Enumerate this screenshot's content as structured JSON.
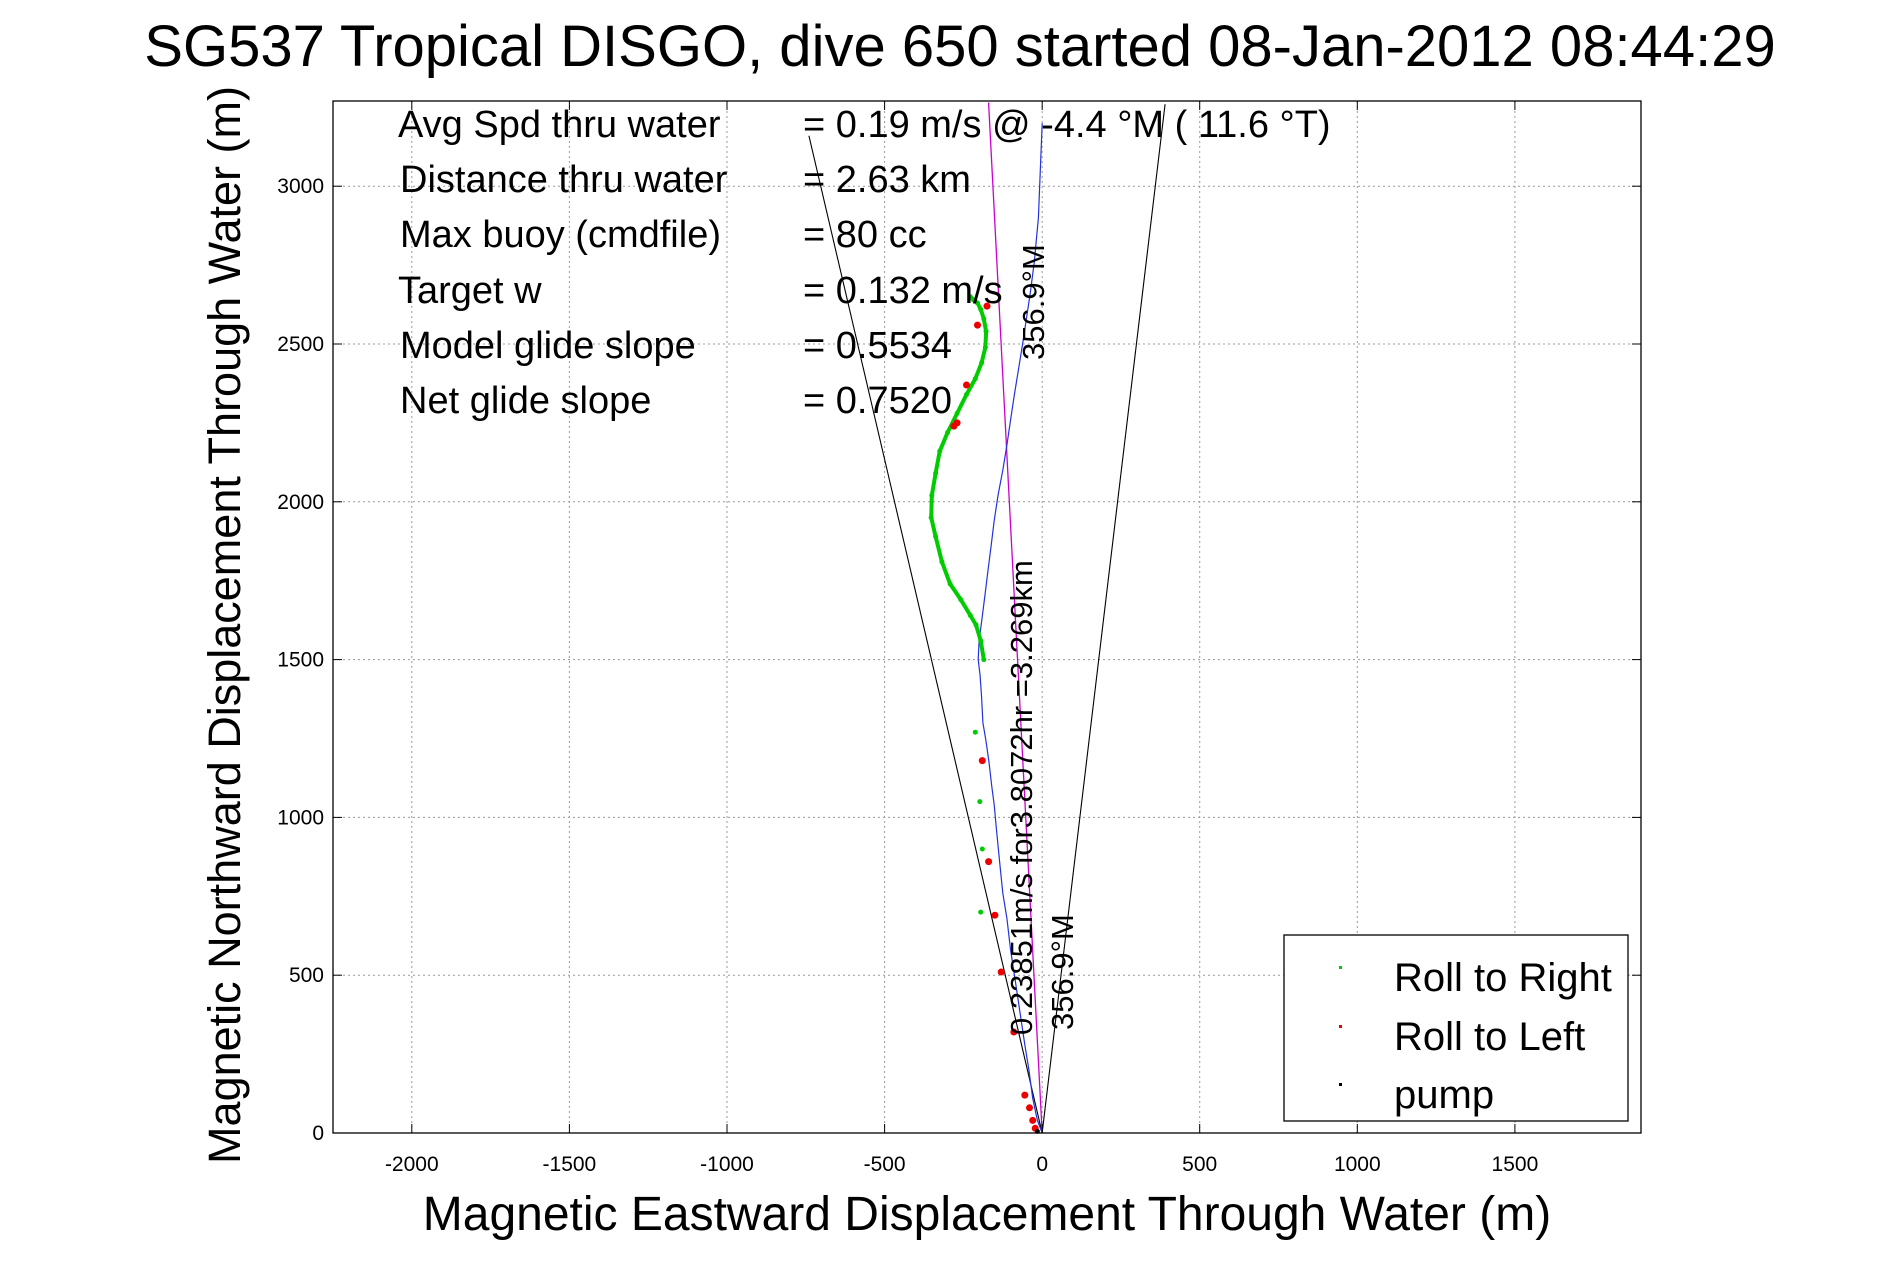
{
  "chart_data": {
    "type": "line",
    "title": "SG537 Tropical DISGO, dive 650 started 08-Jan-2012 08:44:29",
    "xlabel": "Magnetic Eastward Displacement Through Water (m)",
    "ylabel": "Magnetic Northward Displacement Through Water (m)",
    "xlim": [
      -2250,
      1900
    ],
    "ylim": [
      0,
      3270
    ],
    "xticks": [
      -2000,
      -1500,
      -1000,
      -500,
      0,
      500,
      1000,
      1500
    ],
    "yticks": [
      0,
      500,
      1000,
      1500,
      2000,
      2500,
      3000
    ],
    "grid": true,
    "legend_position": "lower-right",
    "info_lines": [
      {
        "label": "Avg Spd thru water",
        "value": "=  0.19 m/s @  -4.4 °M ( 11.6 °T)"
      },
      {
        "label": "Distance thru water",
        "value": "=  2.63 km"
      },
      {
        "label": "Max buoy (cmdfile)",
        "value": "= 80 cc"
      },
      {
        "label": "Target w",
        "value": "= 0.132 m/s"
      },
      {
        "label": "Model glide slope",
        "value": "= 0.5534"
      },
      {
        "label": "Net glide slope",
        "value": "= 0.7520"
      }
    ],
    "annotations": {
      "heading_top": "356.9°M",
      "heading_bottom": "356.9°M",
      "speed_text": "0.23851m/s for3.8072hr =3.269km"
    },
    "heading_line": {
      "x": [
        0,
        -170
      ],
      "y": [
        0,
        3265
      ]
    },
    "cone_lines": [
      {
        "x": [
          0,
          -740
        ],
        "y": [
          0,
          3160
        ]
      },
      {
        "x": [
          0,
          390
        ],
        "y": [
          0,
          3260
        ]
      }
    ],
    "track_thin": {
      "x": [
        0,
        -15,
        -30,
        -42,
        -55,
        -70,
        -85,
        -100,
        -112,
        -125,
        -135,
        -145,
        -152,
        -160,
        -168,
        -178,
        -188,
        -192,
        -197,
        -203,
        -200,
        -192,
        -182,
        -172,
        -162,
        -152,
        -140,
        -125,
        -112,
        -100,
        -88,
        -75,
        -62,
        -50,
        -38,
        -25,
        -12,
        0
      ],
      "y": [
        0,
        40,
        110,
        200,
        280,
        380,
        480,
        580,
        680,
        760,
        860,
        960,
        1040,
        1100,
        1170,
        1240,
        1300,
        1380,
        1450,
        1500,
        1560,
        1620,
        1700,
        1780,
        1860,
        1940,
        2020,
        2100,
        2180,
        2260,
        2340,
        2420,
        2500,
        2580,
        2660,
        2760,
        2900,
        3200
      ]
    },
    "series": [
      {
        "name": "Roll to Right",
        "color": "#00cc00",
        "x": [
          -185,
          -195,
          -210,
          -228,
          -258,
          -292,
          -318,
          -338,
          -352,
          -350,
          -338,
          -325,
          -300,
          -270,
          -240,
          -212,
          -192,
          -180,
          -178,
          -185,
          -195,
          -205,
          -218,
          -228,
          -212,
          -198,
          -190,
          -195
        ],
        "y": [
          1500,
          1560,
          1610,
          1640,
          1690,
          1740,
          1810,
          1890,
          1950,
          2020,
          2090,
          2160,
          2220,
          2280,
          2340,
          2390,
          2440,
          2490,
          2540,
          2580,
          2610,
          2630,
          2640,
          2650,
          1270,
          1050,
          900,
          700
        ]
      },
      {
        "name": "Roll to Left",
        "color": "#ee0000",
        "x": [
          -175,
          -205,
          -240,
          -270,
          -280,
          -190,
          -170,
          -150,
          -130,
          -90,
          -55,
          -40,
          -30,
          -22
        ],
        "y": [
          2620,
          2560,
          2370,
          2250,
          2240,
          1180,
          860,
          690,
          510,
          320,
          120,
          80,
          40,
          15
        ]
      },
      {
        "name": "pump",
        "color": "#000000",
        "x": [
          -15
        ],
        "y": [
          5
        ]
      }
    ]
  }
}
